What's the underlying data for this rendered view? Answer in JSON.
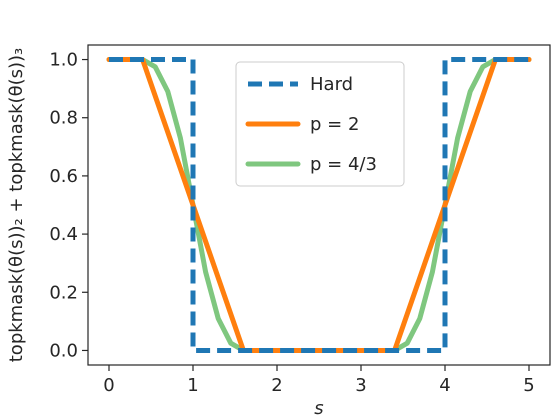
{
  "chart_data": {
    "type": "line",
    "xlabel": "s",
    "ylabel": "topkmask(θ(s))₂ + topkmask(θ(s))₃",
    "xlim": [
      -0.25,
      5.25
    ],
    "ylim": [
      -0.05,
      1.05
    ],
    "xticks": [
      0,
      1,
      2,
      3,
      4,
      5
    ],
    "xtick_labels": [
      "0",
      "1",
      "2",
      "3",
      "4",
      "5"
    ],
    "yticks": [
      0.0,
      0.2,
      0.4,
      0.6,
      0.8,
      1.0
    ],
    "ytick_labels": [
      "0.0",
      "0.2",
      "0.4",
      "0.6",
      "0.8",
      "1.0"
    ],
    "legend_position": "top-center",
    "grid": false,
    "series": [
      {
        "name": "Hard",
        "color": "#1f77b4",
        "style": "dashed",
        "x": [
          0,
          1,
          1,
          4,
          4,
          5
        ],
        "y": [
          1,
          1,
          0,
          0,
          1,
          1
        ]
      },
      {
        "name": "p = 2",
        "color": "#ff7f0e",
        "style": "solid",
        "x": [
          0,
          0.4,
          1.6,
          3.4,
          4.6,
          5
        ],
        "y": [
          1,
          1,
          0,
          0,
          1,
          1
        ]
      },
      {
        "name": "p = 4/3",
        "color": "#7fc77f",
        "style": "solid",
        "x": [
          0,
          0.4,
          0.55,
          0.7,
          0.85,
          1.0,
          1.15,
          1.3,
          1.45,
          1.6,
          3.4,
          3.55,
          3.7,
          3.85,
          4.0,
          4.15,
          4.3,
          4.45,
          4.6,
          5
        ],
        "y": [
          1,
          1,
          0.975,
          0.89,
          0.73,
          0.5,
          0.27,
          0.11,
          0.025,
          0,
          0,
          0.025,
          0.11,
          0.27,
          0.5,
          0.73,
          0.89,
          0.975,
          1,
          1
        ]
      }
    ]
  }
}
